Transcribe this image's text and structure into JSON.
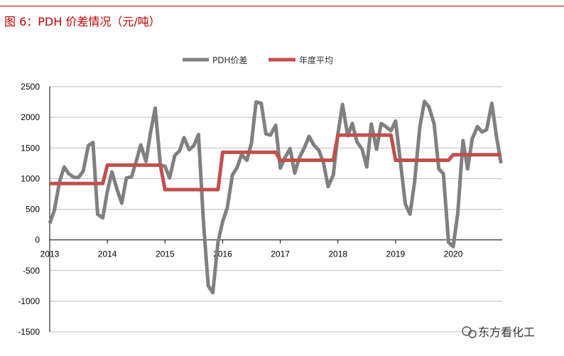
{
  "figure": {
    "title": "图 6：PDH 价差情况（元/吨）",
    "watermark": "东方看化工"
  },
  "colors": {
    "title": "#c00000",
    "series_spread": "#808080",
    "series_annual": "#c0504d",
    "grid": "#bfbfbf"
  },
  "chart_data": {
    "type": "line",
    "title": "",
    "xlabel": "",
    "ylabel": "",
    "ylim": [
      -1500,
      2500
    ],
    "yticks": [
      -1500,
      -1000,
      -500,
      0,
      500,
      1000,
      1500,
      2000,
      2500
    ],
    "xlim": [
      2013,
      2020.85
    ],
    "xtick_labels": [
      "2013",
      "2014",
      "2015",
      "2016",
      "2017",
      "2018",
      "2019",
      "2020"
    ],
    "grid": true,
    "legend_position": "top-center",
    "series": [
      {
        "name": "PDH价差",
        "x": [
          2013.0,
          2013.08,
          2013.17,
          2013.25,
          2013.33,
          2013.42,
          2013.5,
          2013.58,
          2013.67,
          2013.75,
          2013.83,
          2013.92,
          2014.0,
          2014.08,
          2014.17,
          2014.25,
          2014.33,
          2014.42,
          2014.5,
          2014.58,
          2014.67,
          2014.75,
          2014.83,
          2014.92,
          2015.0,
          2015.08,
          2015.17,
          2015.25,
          2015.33,
          2015.42,
          2015.5,
          2015.58,
          2015.67,
          2015.75,
          2015.83,
          2015.92,
          2016.0,
          2016.08,
          2016.17,
          2016.25,
          2016.33,
          2016.42,
          2016.5,
          2016.58,
          2016.67,
          2016.75,
          2016.83,
          2016.92,
          2017.0,
          2017.08,
          2017.17,
          2017.25,
          2017.33,
          2017.42,
          2017.5,
          2017.58,
          2017.67,
          2017.75,
          2017.83,
          2017.92,
          2018.0,
          2018.08,
          2018.17,
          2018.25,
          2018.33,
          2018.42,
          2018.5,
          2018.58,
          2018.67,
          2018.75,
          2018.83,
          2018.92,
          2019.0,
          2019.08,
          2019.17,
          2019.25,
          2019.33,
          2019.42,
          2019.5,
          2019.58,
          2019.67,
          2019.75,
          2019.83,
          2019.92,
          2020.0,
          2020.08,
          2020.17,
          2020.25,
          2020.33,
          2020.42,
          2020.5,
          2020.58,
          2020.67,
          2020.75,
          2020.83
        ],
        "values": [
          270,
          480,
          950,
          1190,
          1080,
          1020,
          1020,
          1120,
          1540,
          1590,
          420,
          360,
          790,
          1110,
          820,
          600,
          1010,
          1030,
          1280,
          1550,
          1280,
          1760,
          2150,
          1220,
          1200,
          1010,
          1380,
          1450,
          1670,
          1470,
          1540,
          1720,
          240,
          -750,
          -860,
          -40,
          300,
          520,
          1060,
          1180,
          1390,
          1300,
          1580,
          2250,
          2230,
          1730,
          1710,
          1870,
          1170,
          1340,
          1490,
          1090,
          1340,
          1510,
          1690,
          1550,
          1460,
          1260,
          870,
          1060,
          1730,
          2210,
          1700,
          1900,
          1600,
          1480,
          1190,
          1890,
          1480,
          1900,
          1850,
          1780,
          1940,
          1300,
          580,
          420,
          950,
          1840,
          2260,
          2170,
          1890,
          1160,
          1080,
          -40,
          -110,
          440,
          1620,
          1160,
          1650,
          1850,
          1760,
          1800,
          2230,
          1690,
          1250
        ]
      },
      {
        "name": "年度平均",
        "x": [
          2013.0,
          2013.92,
          2014.0,
          2014.92,
          2015.0,
          2015.92,
          2016.0,
          2016.92,
          2017.0,
          2017.92,
          2018.0,
          2018.92,
          2019.0,
          2019.92,
          2020.0,
          2020.83
        ],
        "values": [
          920,
          920,
          1220,
          1220,
          820,
          820,
          1430,
          1430,
          1300,
          1300,
          1710,
          1710,
          1300,
          1300,
          1390,
          1390
        ]
      }
    ]
  }
}
